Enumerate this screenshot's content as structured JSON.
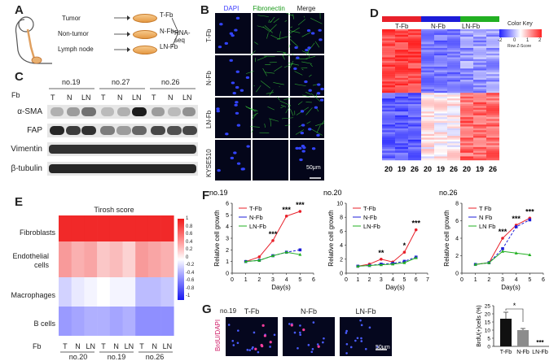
{
  "panels": [
    "A",
    "B",
    "C",
    "D",
    "E",
    "F",
    "G"
  ],
  "panelA": {
    "sources": [
      "Tumor",
      "Non-tumor",
      "Lymph node"
    ],
    "fibroblasts": [
      "T-Fb",
      "N-Fb",
      "LN-Fb"
    ],
    "assay": "RNA-seq"
  },
  "panelB": {
    "columns": [
      "DAPI",
      "Fibronectin",
      "Merge"
    ],
    "column_colors": [
      "#3a3aff",
      "#1a9a1a",
      "#222222"
    ],
    "rows": [
      "T-Fb",
      "N-Fb",
      "LN-Fb",
      "KYSE510"
    ],
    "scalebar": "50μm"
  },
  "panelC": {
    "header_label": "Fb",
    "patients": [
      "no.19",
      "no.27",
      "no.26"
    ],
    "lanes": [
      "T",
      "N",
      "LN",
      "T",
      "N",
      "LN",
      "T",
      "N",
      "LN"
    ],
    "proteins": [
      "α-SMA",
      "FAP",
      "Vimentin",
      "β-tubulin"
    ]
  },
  "panelD": {
    "groups": [
      "T-Fb",
      "N-Fb",
      "LN-Fb"
    ],
    "group_colors": [
      "#e8202a",
      "#1c1cd8",
      "#22b022"
    ],
    "samples": [
      "20",
      "19",
      "26",
      "20",
      "19",
      "26",
      "20",
      "19",
      "26"
    ],
    "key_title": "Color Key",
    "key_ticks": [
      "-2",
      "0",
      "1",
      "2"
    ],
    "key_label": "Row Z-Score"
  },
  "panelE": {
    "title": "Tirosh score",
    "rows": [
      "Fibroblasts",
      "Endothelial cells",
      "Macrophages",
      "B cells"
    ],
    "fb_label": "Fb",
    "lanes": [
      "T",
      "N",
      "LN",
      "T",
      "N",
      "LN",
      "T",
      "N",
      "LN"
    ],
    "patients": [
      "no.20",
      "no.19",
      "no.26"
    ],
    "scale_ticks": [
      "1",
      "0.8",
      "0.6",
      "0.4",
      "0.2",
      "0",
      "-0.2",
      "-0.4",
      "-0.6",
      "-0.8",
      "-1"
    ]
  },
  "chart_data": [
    {
      "type": "heatmap",
      "title": "Tirosh score",
      "rows": [
        "Fibroblasts",
        "Endothelial cells",
        "Macrophages",
        "B cells"
      ],
      "columns": [
        "T",
        "N",
        "LN",
        "T",
        "N",
        "LN",
        "T",
        "N",
        "LN"
      ],
      "values": [
        [
          0.95,
          0.95,
          0.95,
          0.95,
          0.95,
          0.95,
          0.95,
          0.95,
          0.95
        ],
        [
          0.45,
          0.35,
          0.4,
          0.25,
          0.3,
          0.2,
          0.45,
          0.4,
          0.35
        ],
        [
          -0.2,
          -0.1,
          -0.05,
          0.0,
          -0.05,
          -0.05,
          -0.3,
          -0.3,
          -0.25
        ],
        [
          -0.45,
          -0.4,
          -0.35,
          -0.35,
          -0.4,
          -0.35,
          -0.5,
          -0.5,
          -0.5
        ]
      ],
      "vmin": -1,
      "vmax": 1
    },
    {
      "type": "line",
      "title": "no.19",
      "xlabel": "Day(s)",
      "ylabel": "Relative cell growth",
      "x": [
        1,
        2,
        3,
        4,
        5
      ],
      "xlim": [
        0,
        6
      ],
      "ylim": [
        0,
        6
      ],
      "xticks": [
        0,
        1,
        2,
        3,
        4,
        5,
        6
      ],
      "yticks": [
        0,
        1,
        2,
        3,
        4,
        5,
        6
      ],
      "series": [
        {
          "name": "T-Fb",
          "color": "#e8202a",
          "values": [
            1.0,
            1.4,
            2.8,
            4.9,
            5.3
          ]
        },
        {
          "name": "N-Fb",
          "color": "#1c1cd8",
          "values": [
            1.0,
            1.1,
            1.5,
            1.8,
            2.0
          ]
        },
        {
          "name": "LN-Fb",
          "color": "#22b022",
          "values": [
            1.0,
            1.1,
            1.5,
            1.8,
            1.6
          ]
        }
      ],
      "significance": [
        {
          "x": 3,
          "label": "***"
        },
        {
          "x": 4,
          "label": "***"
        },
        {
          "x": 5,
          "label": "***"
        }
      ]
    },
    {
      "type": "line",
      "title": "no.20",
      "xlabel": "Day(s)",
      "ylabel": "Relative cell growth",
      "x": [
        1,
        2,
        3,
        4,
        5,
        6
      ],
      "xlim": [
        0,
        7
      ],
      "ylim": [
        0,
        10
      ],
      "xticks": [
        0,
        1,
        2,
        3,
        4,
        5,
        6,
        7
      ],
      "yticks": [
        0,
        2,
        4,
        6,
        8,
        10
      ],
      "series": [
        {
          "name": "T-Fb",
          "color": "#e8202a",
          "values": [
            1.0,
            1.3,
            2.0,
            1.6,
            3.0,
            6.2
          ]
        },
        {
          "name": "N-Fb",
          "color": "#1c1cd8",
          "values": [
            1.0,
            1.1,
            1.3,
            1.4,
            1.7,
            2.3
          ]
        },
        {
          "name": "LN-Fb",
          "color": "#22b022",
          "values": [
            1.0,
            1.1,
            1.2,
            1.3,
            1.5,
            2.2
          ]
        }
      ],
      "significance": [
        {
          "x": 3,
          "label": "**"
        },
        {
          "x": 5,
          "label": "*"
        },
        {
          "x": 6,
          "label": "***"
        }
      ]
    },
    {
      "type": "line",
      "title": "no.26",
      "xlabel": "Day(s)",
      "ylabel": "Relative cell growth",
      "x": [
        1,
        2,
        3,
        4,
        5
      ],
      "xlim": [
        0,
        6
      ],
      "ylim": [
        0,
        8
      ],
      "xticks": [
        0,
        1,
        2,
        3,
        4,
        5,
        6
      ],
      "yticks": [
        0,
        2,
        4,
        6,
        8
      ],
      "series": [
        {
          "name": "T Fb",
          "color": "#e8202a",
          "values": [
            1.0,
            1.2,
            4.0,
            5.5,
            6.3
          ]
        },
        {
          "name": "N Fb",
          "color": "#1c1cd8",
          "values": [
            1.0,
            1.2,
            2.8,
            5.3,
            6.1
          ]
        },
        {
          "name": "LN Fb",
          "color": "#22b022",
          "values": [
            1.0,
            1.2,
            2.5,
            2.3,
            2.1
          ]
        }
      ],
      "significance": [
        {
          "x": 3,
          "label": "***"
        },
        {
          "x": 4,
          "label": "***"
        },
        {
          "x": 5,
          "label": "***"
        }
      ]
    },
    {
      "type": "bar",
      "categories": [
        "T-Fb",
        "N-Fb",
        "LN-Fb"
      ],
      "values": [
        17,
        10,
        0
      ],
      "errors": [
        4,
        1,
        0
      ],
      "ylabel": "BrdU(+)cells (%)",
      "ylim": [
        0,
        25
      ],
      "yticks": [
        0,
        5,
        10,
        15,
        20,
        25
      ],
      "colors": [
        "#111111",
        "#8c8c8c",
        "#bbbbbb"
      ],
      "annotations": [
        {
          "between": [
            "T-Fb",
            "N-Fb"
          ],
          "label": "*"
        },
        {
          "at": "LN-Fb",
          "label": "***"
        }
      ]
    }
  ],
  "panelG": {
    "patient": "no.19",
    "stain_label": "BrdU/DAPI",
    "images": [
      "T-Fb",
      "N-Fb",
      "LN-Fb"
    ],
    "scalebar": "50μm"
  }
}
